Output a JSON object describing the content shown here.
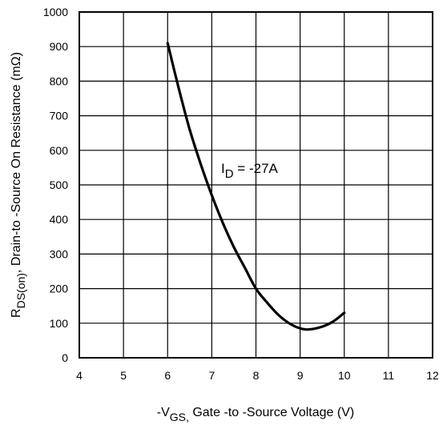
{
  "chart_data": {
    "type": "line",
    "xlabel": {
      "prefix": "-V",
      "sub": "GS,",
      "rest": " Gate -to -Source Voltage  (V)"
    },
    "ylabel": {
      "prefix": "R",
      "sub": "DS(on)",
      "rest": ",  Drain-to -Source On Resistance (mΩ)"
    },
    "xlim": [
      4,
      12
    ],
    "ylim": [
      0,
      1000
    ],
    "xticks": [
      "4",
      "5",
      "6",
      "7",
      "8",
      "9",
      "10",
      "11",
      "12"
    ],
    "yticks": [
      "0",
      "100",
      "200",
      "300",
      "400",
      "500",
      "600",
      "700",
      "800",
      "900",
      "1000"
    ],
    "grid": true,
    "annotation": {
      "prefix": "I",
      "sub": "D",
      "rest": " = -27A"
    },
    "series": [
      {
        "x": [
          6.0,
          6.25,
          6.5,
          6.75,
          7.0,
          7.25,
          7.5,
          7.75,
          8.0,
          8.25,
          8.5,
          8.75,
          9.0,
          9.2,
          9.5,
          9.75,
          10.0
        ],
        "y": [
          910,
          780,
          660,
          560,
          470,
          390,
          320,
          260,
          200,
          160,
          125,
          100,
          85,
          82,
          90,
          105,
          130
        ]
      }
    ]
  }
}
